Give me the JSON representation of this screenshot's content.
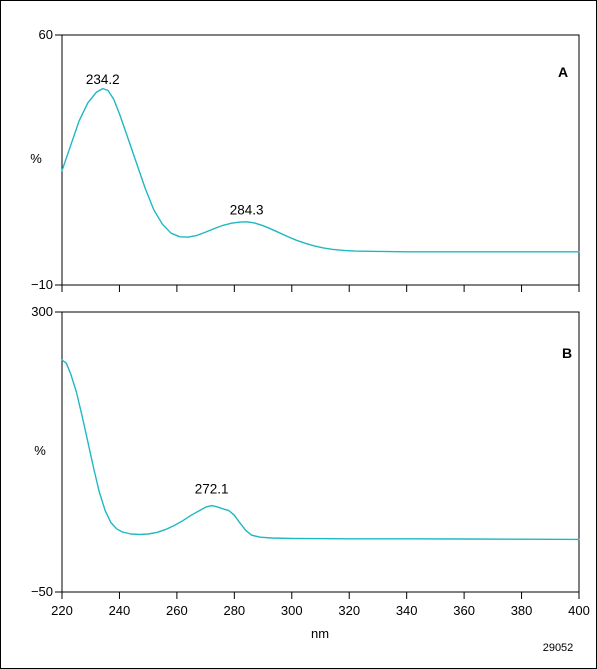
{
  "id_code": "29052",
  "chart_data": [
    {
      "type": "line",
      "panel_label": "A",
      "ylabel": "%",
      "xlabel": "",
      "xlim": [
        220,
        400
      ],
      "ylim": [
        -10,
        60
      ],
      "yticks": [
        60,
        -10
      ],
      "ytick_labels": [
        "60",
        "−10"
      ],
      "xticks": [
        220,
        240,
        260,
        280,
        300,
        320,
        340,
        360,
        380,
        400
      ],
      "peak_labels": [
        {
          "x": 234.2,
          "y": 44,
          "text": "234.2"
        },
        {
          "x": 284.3,
          "y": 7.5,
          "text": "284.3"
        }
      ],
      "series": [
        {
          "color": "#1fb8c2",
          "points": [
            [
              220,
              22
            ],
            [
              223,
              29
            ],
            [
              226,
              36
            ],
            [
              229,
              41
            ],
            [
              232,
              44
            ],
            [
              234.2,
              45
            ],
            [
              236,
              44.5
            ],
            [
              238,
              42
            ],
            [
              240,
              38
            ],
            [
              243,
              31
            ],
            [
              246,
              24
            ],
            [
              249,
              17
            ],
            [
              252,
              11
            ],
            [
              255,
              7
            ],
            [
              258,
              4.5
            ],
            [
              261,
              3.5
            ],
            [
              264,
              3.4
            ],
            [
              267,
              3.9
            ],
            [
              270,
              4.8
            ],
            [
              273,
              5.8
            ],
            [
              276,
              6.7
            ],
            [
              279,
              7.3
            ],
            [
              282,
              7.6
            ],
            [
              284.3,
              7.7
            ],
            [
              287,
              7.4
            ],
            [
              290,
              6.6
            ],
            [
              293,
              5.6
            ],
            [
              296,
              4.5
            ],
            [
              299,
              3.4
            ],
            [
              302,
              2.4
            ],
            [
              305,
              1.6
            ],
            [
              308,
              0.9
            ],
            [
              311,
              0.4
            ],
            [
              314,
              0
            ],
            [
              318,
              -0.3
            ],
            [
              322,
              -0.5
            ],
            [
              330,
              -0.6
            ],
            [
              340,
              -0.7
            ],
            [
              360,
              -0.7
            ],
            [
              380,
              -0.7
            ],
            [
              400,
              -0.7
            ]
          ]
        }
      ]
    },
    {
      "type": "line",
      "panel_label": "B",
      "ylabel": "%",
      "xlabel": "nm",
      "xlim": [
        220,
        400
      ],
      "ylim": [
        -50,
        300
      ],
      "yticks": [
        300,
        -50
      ],
      "ytick_labels": [
        "300",
        "−50"
      ],
      "xticks": [
        220,
        240,
        260,
        280,
        300,
        320,
        340,
        360,
        380,
        400
      ],
      "xtick_labels": [
        "220",
        "240",
        "260",
        "280",
        "300",
        "320",
        "340",
        "360",
        "380",
        "400"
      ],
      "peak_labels": [
        {
          "x": 272.1,
          "y": 63,
          "text": "272.1"
        }
      ],
      "series": [
        {
          "color": "#1fb8c2",
          "points": [
            [
              220,
              240
            ],
            [
              221.5,
              236
            ],
            [
              223,
              223
            ],
            [
              225,
              200
            ],
            [
              227,
              170
            ],
            [
              229,
              138
            ],
            [
              231,
              105
            ],
            [
              233,
              75
            ],
            [
              235,
              52
            ],
            [
              237,
              37
            ],
            [
              239,
              29
            ],
            [
              241,
              25
            ],
            [
              244,
              22.5
            ],
            [
              247,
              22
            ],
            [
              250,
              22.5
            ],
            [
              253,
              24.5
            ],
            [
              256,
              28
            ],
            [
              259,
              33
            ],
            [
              262,
              39
            ],
            [
              265,
              46
            ],
            [
              268,
              52
            ],
            [
              270,
              56
            ],
            [
              272.1,
              58
            ],
            [
              274,
              56.5
            ],
            [
              276,
              54
            ],
            [
              278,
              52
            ],
            [
              280,
              46
            ],
            [
              282,
              36
            ],
            [
              284,
              27
            ],
            [
              286,
              21
            ],
            [
              289,
              18.5
            ],
            [
              293,
              17.5
            ],
            [
              300,
              17
            ],
            [
              320,
              16.5
            ],
            [
              340,
              16.5
            ],
            [
              360,
              16.2
            ],
            [
              380,
              16
            ],
            [
              400,
              15.8
            ]
          ]
        }
      ]
    }
  ]
}
